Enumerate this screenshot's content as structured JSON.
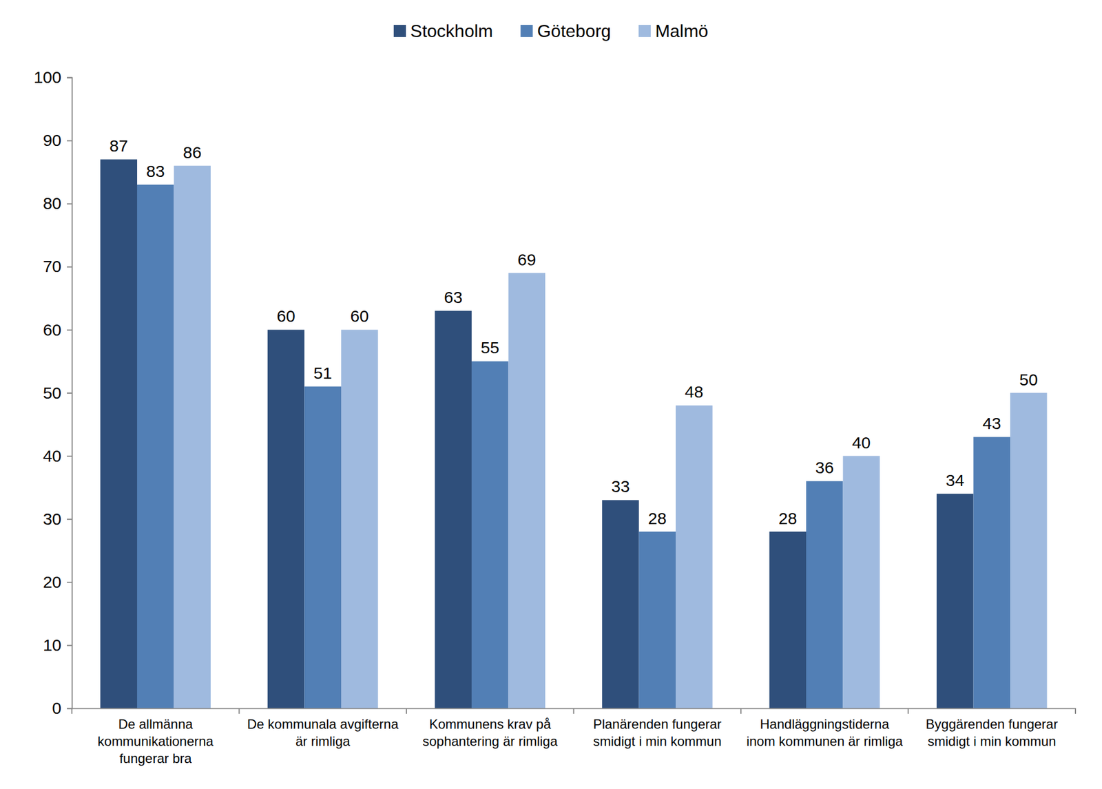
{
  "chart_data": {
    "type": "bar",
    "categories": [
      "De allmänna kommunikationerna fungerar bra",
      "De kommunala avgifterna är rimliga",
      "Kommunens krav på sophantering är rimliga",
      "Planärenden fungerar smidigt i min kommun",
      "Handläggningstiderna inom kommunen är rimliga",
      "Byggärenden fungerar smidigt i min kommun"
    ],
    "series": [
      {
        "name": "Stockholm",
        "color": "#2f4f7b",
        "values": [
          87,
          60,
          63,
          33,
          28,
          34
        ]
      },
      {
        "name": "Göteborg",
        "color": "#527fb5",
        "values": [
          83,
          51,
          55,
          28,
          36,
          43
        ]
      },
      {
        "name": "Malmö",
        "color": "#9fbadf",
        "values": [
          86,
          60,
          69,
          48,
          40,
          50
        ]
      }
    ],
    "ylim": [
      0,
      100
    ],
    "yticks": [
      0,
      10,
      20,
      30,
      40,
      50,
      60,
      70,
      80,
      90,
      100
    ],
    "grid": false,
    "legend": "top",
    "data_labels": true
  }
}
